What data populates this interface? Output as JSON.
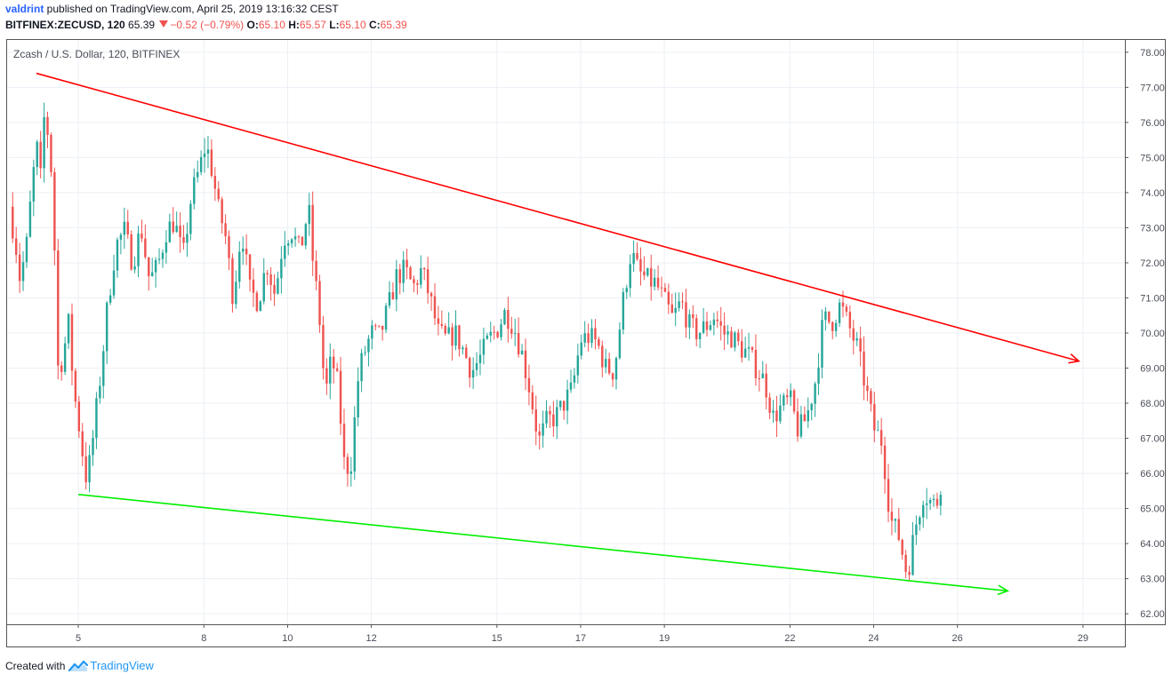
{
  "header": {
    "author": "valdrint",
    "published_text": " published on TradingView.com, April 25, 2019 13:16:32 CEST",
    "symbol": "BITFINEX:ZECUSD, 120",
    "last": "65.39",
    "change": "−0.52 (−0.79%)",
    "o_label": "O:",
    "o_value": "65.10",
    "h_label": "H:",
    "h_value": "65.57",
    "l_label": "L:",
    "l_value": "65.10",
    "c_label": "C:",
    "c_value": "65.39"
  },
  "footer": {
    "created_with": "Created with",
    "brand": "TradingView"
  },
  "colors": {
    "up": "#26a69a",
    "down": "#ef5350",
    "resistance": "#ff0000",
    "support": "#00ee00",
    "grid": "#eceff4"
  },
  "chart_data": {
    "type": "candlestick",
    "title": "Zcash / U.S. Dollar, 120, BITFINEX",
    "y_range": [
      61.7,
      78.35
    ],
    "y_ticks": [
      "62.00",
      "63.00",
      "64.00",
      "65.00",
      "66.00",
      "67.00",
      "68.00",
      "69.00",
      "70.00",
      "71.00",
      "72.00",
      "73.00",
      "74.00",
      "75.00",
      "76.00",
      "77.00",
      "78.00"
    ],
    "x_range": [
      3.3,
      30.0
    ],
    "x_ticks": [
      {
        "day": 5,
        "label": "5"
      },
      {
        "day": 8,
        "label": "8"
      },
      {
        "day": 10,
        "label": "10"
      },
      {
        "day": 12,
        "label": "12"
      },
      {
        "day": 15,
        "label": "15"
      },
      {
        "day": 17,
        "label": "17"
      },
      {
        "day": 19,
        "label": "19"
      },
      {
        "day": 22,
        "label": "22"
      },
      {
        "day": 24,
        "label": "24"
      },
      {
        "day": 26,
        "label": "26"
      },
      {
        "day": 29,
        "label": "29"
      }
    ],
    "grid": true,
    "close_path": [
      [
        3.35,
        73.6
      ],
      [
        3.5,
        72.6
      ],
      [
        3.6,
        71.6
      ],
      [
        3.75,
        72.3
      ],
      [
        3.85,
        73.6
      ],
      [
        4.0,
        75.4
      ],
      [
        4.12,
        74.2
      ],
      [
        4.2,
        76.6
      ],
      [
        4.3,
        75.3
      ],
      [
        4.4,
        74.1
      ],
      [
        4.5,
        69.0
      ],
      [
        4.65,
        69.3
      ],
      [
        4.75,
        70.5
      ],
      [
        4.9,
        68.3
      ],
      [
        5.0,
        67.5
      ],
      [
        5.1,
        66.6
      ],
      [
        5.2,
        65.8
      ],
      [
        5.3,
        66.5
      ],
      [
        5.4,
        67.5
      ],
      [
        5.55,
        69.0
      ],
      [
        5.7,
        70.8
      ],
      [
        5.9,
        72.5
      ],
      [
        6.1,
        72.9
      ],
      [
        6.3,
        72.0
      ],
      [
        6.5,
        73.0
      ],
      [
        6.7,
        71.5
      ],
      [
        6.9,
        71.9
      ],
      [
        7.1,
        72.9
      ],
      [
        7.3,
        73.2
      ],
      [
        7.5,
        72.1
      ],
      [
        7.7,
        73.9
      ],
      [
        7.9,
        74.7
      ],
      [
        8.05,
        75.4
      ],
      [
        8.2,
        74.6
      ],
      [
        8.35,
        73.5
      ],
      [
        8.5,
        72.9
      ],
      [
        8.7,
        71.0
      ],
      [
        8.9,
        73.0
      ],
      [
        9.1,
        71.2
      ],
      [
        9.3,
        70.9
      ],
      [
        9.5,
        72.0
      ],
      [
        9.7,
        71.1
      ],
      [
        9.9,
        72.7
      ],
      [
        10.1,
        72.9
      ],
      [
        10.3,
        72.3
      ],
      [
        10.5,
        73.6
      ],
      [
        10.6,
        72.1
      ],
      [
        10.75,
        70.6
      ],
      [
        10.9,
        68.2
      ],
      [
        11.05,
        69.3
      ],
      [
        11.2,
        68.5
      ],
      [
        11.35,
        66.3
      ],
      [
        11.5,
        66.1
      ],
      [
        11.7,
        68.9
      ],
      [
        11.85,
        69.5
      ],
      [
        12.0,
        70.0
      ],
      [
        12.2,
        69.9
      ],
      [
        12.4,
        70.7
      ],
      [
        12.6,
        71.6
      ],
      [
        12.8,
        71.8
      ],
      [
        13.0,
        71.3
      ],
      [
        13.2,
        71.8
      ],
      [
        13.4,
        71.0
      ],
      [
        13.6,
        70.0
      ],
      [
        13.8,
        69.8
      ],
      [
        14.0,
        70.0
      ],
      [
        14.2,
        69.5
      ],
      [
        14.4,
        68.9
      ],
      [
        14.6,
        69.3
      ],
      [
        14.8,
        69.8
      ],
      [
        15.0,
        70.1
      ],
      [
        15.2,
        70.6
      ],
      [
        15.4,
        70.2
      ],
      [
        15.6,
        69.4
      ],
      [
        15.8,
        68.3
      ],
      [
        16.0,
        66.9
      ],
      [
        16.2,
        67.5
      ],
      [
        16.4,
        67.6
      ],
      [
        16.6,
        68.0
      ],
      [
        16.8,
        68.4
      ],
      [
        17.0,
        69.8
      ],
      [
        17.2,
        69.9
      ],
      [
        17.4,
        69.7
      ],
      [
        17.6,
        69.0
      ],
      [
        17.8,
        68.9
      ],
      [
        18.0,
        70.8
      ],
      [
        18.2,
        72.3
      ],
      [
        18.4,
        71.7
      ],
      [
        18.6,
        71.5
      ],
      [
        18.8,
        71.4
      ],
      [
        19.0,
        70.9
      ],
      [
        19.2,
        70.4
      ],
      [
        19.4,
        70.9
      ],
      [
        19.6,
        70.2
      ],
      [
        19.8,
        70.0
      ],
      [
        20.0,
        70.2
      ],
      [
        20.2,
        70.5
      ],
      [
        20.4,
        70.0
      ],
      [
        20.6,
        69.9
      ],
      [
        20.8,
        69.6
      ],
      [
        21.0,
        69.4
      ],
      [
        21.2,
        69.0
      ],
      [
        21.4,
        68.6
      ],
      [
        21.6,
        67.6
      ],
      [
        21.8,
        67.9
      ],
      [
        22.0,
        68.1
      ],
      [
        22.2,
        67.2
      ],
      [
        22.4,
        67.6
      ],
      [
        22.6,
        68.6
      ],
      [
        22.8,
        70.4
      ],
      [
        23.0,
        70.3
      ],
      [
        23.2,
        70.8
      ],
      [
        23.4,
        70.2
      ],
      [
        23.6,
        69.6
      ],
      [
        23.8,
        68.5
      ],
      [
        24.0,
        67.3
      ],
      [
        24.2,
        66.9
      ],
      [
        24.4,
        64.7
      ],
      [
        24.6,
        64.2
      ],
      [
        24.8,
        63.1
      ],
      [
        25.0,
        64.5
      ],
      [
        25.2,
        65.5
      ],
      [
        25.4,
        65.1
      ],
      [
        25.6,
        65.3
      ],
      [
        25.65,
        65.39
      ]
    ],
    "trendlines": [
      {
        "color_key": "resistance",
        "start": [
          4.0,
          77.4
        ],
        "end": [
          28.9,
          69.2
        ]
      },
      {
        "color_key": "support",
        "start": [
          5.0,
          65.4
        ],
        "end": [
          27.2,
          62.65
        ]
      }
    ]
  }
}
